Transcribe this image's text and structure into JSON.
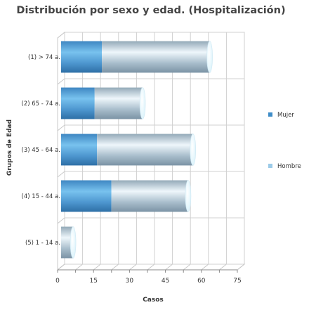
{
  "chart_data": {
    "type": "bar",
    "orientation": "horizontal",
    "stacked": true,
    "style": "3d-cylinder",
    "title": "Distribución por sexo y edad. (Hospitalización)",
    "xlabel": "Casos",
    "ylabel": "Grupos de Edad",
    "categories": [
      "(1) > 74 a.",
      "(2) 65 - 74 a.",
      "(3) 45 - 64 a.",
      "(4) 15 - 44 a.",
      "(5) 1 - 14 a."
    ],
    "series": [
      {
        "name": "Mujer",
        "values": [
          17,
          14,
          15,
          21,
          0
        ],
        "color": "#3f8dc8"
      },
      {
        "name": "Hombre",
        "values": [
          45,
          20,
          40,
          32,
          5
        ],
        "color": "#9ccbe8"
      }
    ],
    "xlim": [
      0,
      75
    ],
    "xticks": [
      "0",
      "15",
      "30",
      "45",
      "60",
      "75"
    ],
    "grid": true,
    "legend_position": "right"
  }
}
